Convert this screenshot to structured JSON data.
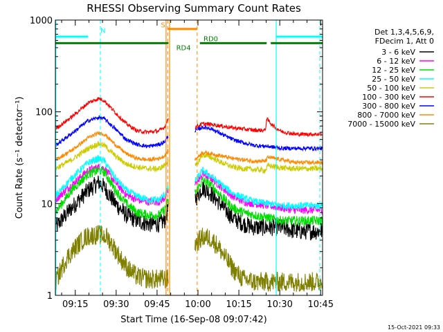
{
  "chart_data": {
    "type": "line",
    "title": "RHESSI Observing Summary Count Rates",
    "xlabel": "Start Time (16-Sep-08 09:07:42)",
    "ylabel": "Count Rate (s⁻¹ detector⁻¹)",
    "yscale": "log",
    "xlim": [
      0,
      98
    ],
    "ylim": [
      1,
      1000
    ],
    "x_unit": "minutes after 09:07:42",
    "x_ticks": [
      {
        "value": 7.3,
        "label": "09:15"
      },
      {
        "value": 22.3,
        "label": "09:30"
      },
      {
        "value": 37.3,
        "label": "09:45"
      },
      {
        "value": 52.3,
        "label": "10:00"
      },
      {
        "value": 67.3,
        "label": "10:15"
      },
      {
        "value": 82.3,
        "label": "10:30"
      },
      {
        "value": 97.3,
        "label": "10:45"
      }
    ],
    "y_ticks": [
      {
        "value": 1,
        "label": "1"
      },
      {
        "value": 10,
        "label": "10"
      },
      {
        "value": 100,
        "label": "100"
      },
      {
        "value": 1000,
        "label": "1000"
      }
    ],
    "legend": {
      "position": "right",
      "header": [
        "Det 1,3,4,5,6,9,",
        "FDecim 1, Att 0"
      ]
    },
    "data_gap": [
      41.5,
      51.2
    ],
    "series": [
      {
        "name": "3 - 6 keV",
        "color": "#000000",
        "noise": 0.22,
        "points": [
          [
            0,
            5.5
          ],
          [
            6,
            9
          ],
          [
            12,
            14
          ],
          [
            16,
            17
          ],
          [
            18,
            15
          ],
          [
            22,
            10
          ],
          [
            26,
            7.5
          ],
          [
            30,
            6.5
          ],
          [
            34,
            6
          ],
          [
            38,
            6
          ],
          [
            40,
            6.5
          ],
          [
            41.5,
            9
          ],
          [
            51.2,
            11
          ],
          [
            54,
            15
          ],
          [
            57,
            13
          ],
          [
            61,
            9.5
          ],
          [
            65,
            7
          ],
          [
            69,
            6
          ],
          [
            73,
            5.5
          ],
          [
            78,
            5.5
          ],
          [
            83,
            5.5
          ],
          [
            88,
            5
          ],
          [
            93,
            5
          ],
          [
            98,
            5
          ]
        ]
      },
      {
        "name": "6 - 12 keV",
        "color": "#ff00ff",
        "noise": 0.1,
        "points": [
          [
            0,
            11
          ],
          [
            6,
            16
          ],
          [
            12,
            23
          ],
          [
            16,
            25
          ],
          [
            18,
            24
          ],
          [
            22,
            17
          ],
          [
            26,
            12.5
          ],
          [
            30,
            11
          ],
          [
            34,
            10.5
          ],
          [
            38,
            10.5
          ],
          [
            40,
            11.5
          ],
          [
            41.5,
            14
          ],
          [
            51.2,
            16
          ],
          [
            54,
            21
          ],
          [
            57,
            19
          ],
          [
            61,
            15
          ],
          [
            65,
            12
          ],
          [
            69,
            10.5
          ],
          [
            73,
            10
          ],
          [
            78,
            9.5
          ],
          [
            83,
            9
          ],
          [
            88,
            8.5
          ],
          [
            93,
            8.5
          ],
          [
            98,
            8.5
          ]
        ]
      },
      {
        "name": "12 - 25 keV",
        "color": "#00dd00",
        "noise": 0.12,
        "points": [
          [
            0,
            8
          ],
          [
            6,
            14
          ],
          [
            12,
            21
          ],
          [
            16,
            23
          ],
          [
            18,
            22
          ],
          [
            22,
            14
          ],
          [
            26,
            10
          ],
          [
            30,
            8
          ],
          [
            34,
            7.5
          ],
          [
            38,
            7.5
          ],
          [
            40,
            8.5
          ],
          [
            41.5,
            11
          ],
          [
            51.2,
            13
          ],
          [
            54,
            18
          ],
          [
            57,
            16
          ],
          [
            61,
            12
          ],
          [
            65,
            9
          ],
          [
            69,
            8
          ],
          [
            73,
            7.5
          ],
          [
            78,
            7
          ],
          [
            83,
            6.5
          ],
          [
            88,
            6.5
          ],
          [
            93,
            6.5
          ],
          [
            98,
            6.5
          ]
        ]
      },
      {
        "name": "25 - 50 keV",
        "color": "#00ffff",
        "noise": 0.09,
        "points": [
          [
            0,
            12
          ],
          [
            6,
            19
          ],
          [
            12,
            28
          ],
          [
            16,
            31
          ],
          [
            18,
            29
          ],
          [
            22,
            19
          ],
          [
            26,
            14
          ],
          [
            30,
            12
          ],
          [
            34,
            11
          ],
          [
            38,
            11
          ],
          [
            40,
            12.5
          ],
          [
            41.5,
            15
          ],
          [
            51.2,
            17.5
          ],
          [
            54,
            23
          ],
          [
            57,
            20
          ],
          [
            61,
            16
          ],
          [
            65,
            13
          ],
          [
            69,
            11.5
          ],
          [
            73,
            10.5
          ],
          [
            78,
            10
          ],
          [
            83,
            9.5
          ],
          [
            88,
            9.5
          ],
          [
            93,
            9.5
          ],
          [
            98,
            9.5
          ]
        ]
      },
      {
        "name": "50 - 100 keV",
        "color": "#cccc00",
        "noise": 0.07,
        "points": [
          [
            0,
            24
          ],
          [
            6,
            30
          ],
          [
            12,
            40
          ],
          [
            16,
            45
          ],
          [
            18,
            43
          ],
          [
            22,
            33
          ],
          [
            26,
            27
          ],
          [
            30,
            25
          ],
          [
            34,
            24
          ],
          [
            38,
            24
          ],
          [
            40,
            26
          ],
          [
            41.5,
            30
          ],
          [
            51.2,
            25
          ],
          [
            54,
            34
          ],
          [
            57,
            32
          ],
          [
            61,
            28
          ],
          [
            65,
            25
          ],
          [
            69,
            24
          ],
          [
            73,
            23.5
          ],
          [
            77,
            23
          ],
          [
            78,
            26
          ],
          [
            83,
            24.5
          ],
          [
            88,
            24
          ],
          [
            93,
            24
          ],
          [
            98,
            24
          ]
        ]
      },
      {
        "name": "100 - 300 keV",
        "color": "#ff0000",
        "noise": 0.05,
        "points": [
          [
            0,
            65
          ],
          [
            6,
            88
          ],
          [
            12,
            125
          ],
          [
            16,
            140
          ],
          [
            18,
            132
          ],
          [
            22,
            98
          ],
          [
            26,
            74
          ],
          [
            30,
            62
          ],
          [
            34,
            60
          ],
          [
            38,
            62
          ],
          [
            40,
            68
          ],
          [
            41.5,
            85
          ],
          [
            51.2,
            68
          ],
          [
            54,
            74
          ],
          [
            57,
            73
          ],
          [
            61,
            70
          ],
          [
            65,
            67
          ],
          [
            69,
            65
          ],
          [
            73,
            63
          ],
          [
            77,
            63
          ],
          [
            77.5,
            84
          ],
          [
            80,
            70
          ],
          [
            83,
            61
          ],
          [
            88,
            57
          ],
          [
            93,
            57
          ],
          [
            98,
            57
          ]
        ]
      },
      {
        "name": "300 - 800 keV",
        "color": "#0000ff",
        "noise": 0.05,
        "points": [
          [
            0,
            43
          ],
          [
            6,
            58
          ],
          [
            12,
            80
          ],
          [
            16,
            87
          ],
          [
            18,
            84
          ],
          [
            22,
            65
          ],
          [
            26,
            50
          ],
          [
            30,
            44
          ],
          [
            34,
            42
          ],
          [
            38,
            44
          ],
          [
            40,
            47
          ],
          [
            41.5,
            55
          ],
          [
            51.2,
            62
          ],
          [
            54,
            68
          ],
          [
            57,
            66
          ],
          [
            61,
            57
          ],
          [
            65,
            50
          ],
          [
            69,
            46
          ],
          [
            73,
            43
          ],
          [
            78,
            42
          ],
          [
            83,
            40
          ],
          [
            88,
            40
          ],
          [
            93,
            40
          ],
          [
            98,
            40
          ]
        ]
      },
      {
        "name": "800 - 7000 keV",
        "color": "#ff8800",
        "noise": 0.05,
        "points": [
          [
            0,
            30
          ],
          [
            6,
            38
          ],
          [
            12,
            52
          ],
          [
            16,
            59
          ],
          [
            18,
            57
          ],
          [
            22,
            44
          ],
          [
            26,
            35
          ],
          [
            30,
            31
          ],
          [
            34,
            30
          ],
          [
            38,
            31
          ],
          [
            40,
            33
          ],
          [
            41.5,
            38
          ],
          [
            51.2,
            30
          ],
          [
            54,
            36
          ],
          [
            57,
            35
          ],
          [
            61,
            33
          ],
          [
            65,
            31
          ],
          [
            69,
            30
          ],
          [
            73,
            29
          ],
          [
            77,
            29
          ],
          [
            78,
            32
          ],
          [
            83,
            30
          ],
          [
            88,
            28
          ],
          [
            93,
            28
          ],
          [
            98,
            28
          ]
        ]
      },
      {
        "name": "7000 - 15000 keV",
        "color": "#808000",
        "noise": 0.25,
        "points": [
          [
            0,
            1.4
          ],
          [
            4,
            2.5
          ],
          [
            8,
            3.5
          ],
          [
            11,
            4.3
          ],
          [
            13,
            4.5
          ],
          [
            16,
            4.6
          ],
          [
            19,
            4.3
          ],
          [
            21,
            3.5
          ],
          [
            24,
            2.5
          ],
          [
            27,
            1.9
          ],
          [
            30,
            1.6
          ],
          [
            34,
            1.5
          ],
          [
            38,
            1.5
          ],
          [
            41.5,
            1.5
          ],
          [
            51.2,
            3.6
          ],
          [
            54,
            4.3
          ],
          [
            57,
            4.2
          ],
          [
            60,
            3.3
          ],
          [
            63,
            2.4
          ],
          [
            66,
            1.8
          ],
          [
            69,
            1.5
          ],
          [
            73,
            1.4
          ],
          [
            78,
            1.4
          ],
          [
            83,
            1.4
          ],
          [
            88,
            1.4
          ],
          [
            93,
            1.4
          ],
          [
            98,
            1.4
          ]
        ]
      }
    ],
    "annotations": [
      {
        "label": "N",
        "color": "#00ffff",
        "bar_y": 660,
        "segments": [
          [
            0,
            12
          ],
          [
            81,
            98
          ]
        ],
        "lines": [
          16.5,
          97
        ],
        "text_x": 17.5,
        "text_y": 725
      },
      {
        "label": "S",
        "color": "#ff8800",
        "bar_y": 800,
        "segments": [
          [
            41.2,
            52
          ]
        ],
        "lines": [
          41.2,
          52
        ],
        "text_x": 39.5,
        "text_y": 830
      },
      {
        "label": "RD0",
        "color": "#008000",
        "bar_y": 560,
        "segments": [
          [
            0,
            41.5
          ],
          [
            53,
            77.5
          ],
          [
            79,
            98
          ]
        ],
        "lines": [],
        "text_x": 57,
        "text_y": 590
      },
      {
        "label": "RD4",
        "color": "#008000",
        "bar_y": 560,
        "segments": [],
        "lines": [],
        "text_x": 47,
        "text_y": 470
      }
    ],
    "vertical_lines": [
      {
        "x": 0.15,
        "color": "#00ffff",
        "style": "solid"
      },
      {
        "x": 40.6,
        "color": "#ff8800",
        "style": "solid"
      },
      {
        "x": 41.9,
        "color": "#ff8800",
        "style": "solid"
      },
      {
        "x": 81,
        "color": "#00ffff",
        "style": "solid"
      }
    ]
  },
  "footer": {
    "timestamp": "15-Oct-2021 09:33"
  }
}
